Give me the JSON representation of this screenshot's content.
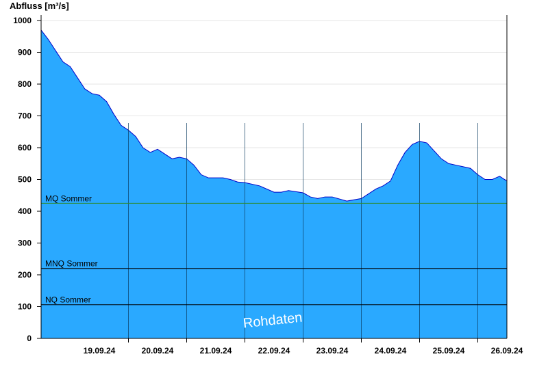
{
  "chart_data": {
    "type": "area",
    "ylabel": "Abfluss [m³/s]",
    "ylim": [
      0,
      1000
    ],
    "yticks": [
      0,
      100,
      200,
      300,
      400,
      500,
      600,
      700,
      800,
      900,
      1000
    ],
    "xlim": [
      "18.09.24 12:00",
      "26.09.24 12:00"
    ],
    "xtick_labels": [
      "19.09.24",
      "20.09.24",
      "21.09.24",
      "22.09.24",
      "23.09.24",
      "24.09.24",
      "25.09.24",
      "26.09.24"
    ],
    "grid": true,
    "fill_color": "#2aa9ff",
    "line_color": "#0000c8",
    "series": [
      {
        "x": [
          "18.09.24 12:00",
          "18.09.24 15:00",
          "18.09.24 18:00",
          "18.09.24 21:00",
          "19.09.24 00:00",
          "19.09.24 03:00",
          "19.09.24 06:00",
          "19.09.24 09:00",
          "19.09.24 12:00",
          "19.09.24 15:00",
          "19.09.24 18:00",
          "19.09.24 21:00",
          "20.09.24 00:00",
          "20.09.24 03:00",
          "20.09.24 06:00",
          "20.09.24 09:00",
          "20.09.24 12:00",
          "20.09.24 15:00",
          "20.09.24 18:00",
          "20.09.24 21:00",
          "21.09.24 00:00",
          "21.09.24 03:00",
          "21.09.24 06:00",
          "21.09.24 09:00",
          "21.09.24 12:00",
          "21.09.24 15:00",
          "21.09.24 18:00",
          "21.09.24 21:00",
          "22.09.24 00:00",
          "22.09.24 06:00",
          "22.09.24 12:00",
          "22.09.24 15:00",
          "22.09.24 18:00",
          "23.09.24 00:00",
          "23.09.24 03:00",
          "23.09.24 06:00",
          "23.09.24 09:00",
          "23.09.24 12:00",
          "23.09.24 18:00",
          "24.09.24 00:00",
          "24.09.24 03:00",
          "24.09.24 06:00",
          "24.09.24 09:00",
          "24.09.24 12:00",
          "24.09.24 15:00",
          "24.09.24 18:00",
          "24.09.24 21:00",
          "25.09.24 00:00",
          "25.09.24 03:00",
          "25.09.24 06:00",
          "25.09.24 09:00",
          "25.09.24 12:00",
          "25.09.24 15:00",
          "25.09.24 18:00",
          "25.09.24 21:00",
          "26.09.24 00:00",
          "26.09.24 03:00",
          "26.09.24 06:00",
          "26.09.24 09:00",
          "26.09.24 12:00"
        ],
        "y": [
          970,
          940,
          905,
          870,
          855,
          820,
          785,
          770,
          765,
          745,
          705,
          670,
          655,
          635,
          600,
          585,
          595,
          580,
          565,
          570,
          565,
          545,
          515,
          505,
          505,
          505,
          500,
          492,
          490,
          480,
          460,
          460,
          465,
          458,
          445,
          440,
          445,
          445,
          432,
          440,
          455,
          470,
          480,
          495,
          545,
          585,
          610,
          620,
          615,
          590,
          565,
          550,
          545,
          540,
          535,
          515,
          500,
          500,
          510,
          495
        ]
      }
    ],
    "reference_lines": [
      {
        "label": "MQ Sommer",
        "value": 425,
        "color": "#2e8b2e"
      },
      {
        "label": "MNQ Sommer",
        "value": 220,
        "color": "#000000"
      },
      {
        "label": "NQ Sommer",
        "value": 106,
        "color": "#000000"
      }
    ],
    "annotation": "Rohdaten"
  }
}
